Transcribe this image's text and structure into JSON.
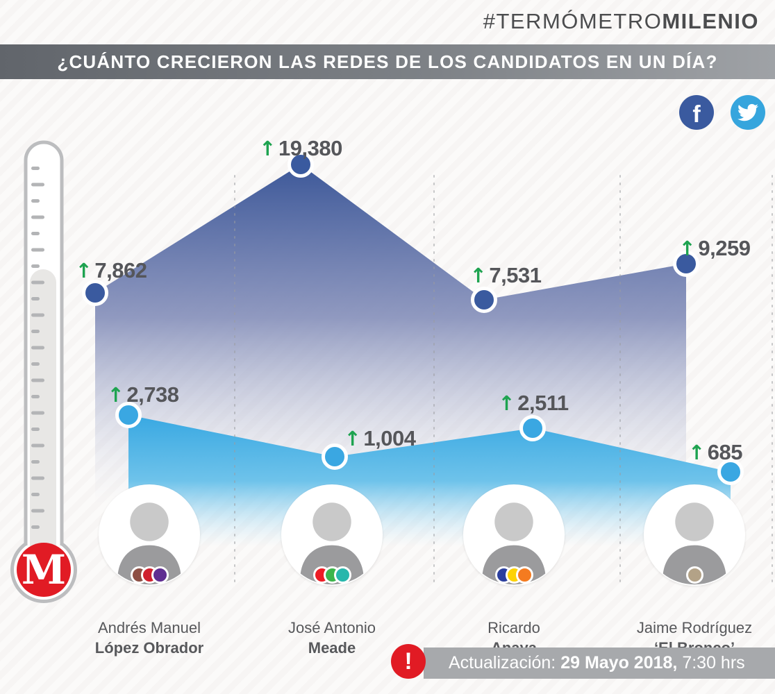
{
  "header": {
    "hashtag_light": "#TERMÓMETRO",
    "hashtag_bold": "MILENIO"
  },
  "title": "¿CUÁNTO CRECIERON LAS REDES DE LOS CANDIDATOS EN UN DÍA?",
  "social": {
    "facebook_glyph": "f",
    "facebook_color": "#3b5998",
    "twitter_color": "#36a5dd"
  },
  "chart_data": {
    "type": "area",
    "title": "¿CUÁNTO CRECIERON LAS REDES DE LOS CANDIDATOS EN UN DÍA?",
    "categories": [
      "Andrés Manuel López Obrador",
      "José Antonio Meade",
      "Ricardo Anaya",
      "Jaime Rodríguez ‘El Bronco’"
    ],
    "series": [
      {
        "name": "Facebook",
        "color": "#3a5a9f",
        "values": [
          7862,
          19380,
          7531,
          9259
        ],
        "labels": [
          "7,862",
          "19,380",
          "7,531",
          "9,259"
        ]
      },
      {
        "name": "Twitter",
        "color": "#3aa7e2",
        "values": [
          2738,
          1004,
          2511,
          685
        ],
        "labels": [
          "2,738",
          "1,004",
          "2,511",
          "685"
        ]
      }
    ],
    "arrow": "↑",
    "arrow_color": "#1ea350",
    "legend_position": "top-right",
    "grid": "dashed vertical separators"
  },
  "candidates": [
    {
      "first": "Andrés Manuel",
      "last": "López Obrador",
      "party_colors": [
        "#8d4f44",
        "#d0202e",
        "#5f2d91"
      ]
    },
    {
      "first": "José Antonio",
      "last": "Meade",
      "party_colors": [
        "#ed1c24",
        "#3cb54b",
        "#28b7ac"
      ]
    },
    {
      "first": "Ricardo",
      "last": "Anaya",
      "party_colors": [
        "#2b3f9e",
        "#fdd204",
        "#f47b20"
      ]
    },
    {
      "first": "Jaime Rodríguez",
      "last": "‘El Bronco’",
      "party_colors": [
        "#b3a287"
      ]
    }
  ],
  "footer": {
    "alert_glyph": "!",
    "label": "Actualización:",
    "date_bold": "29 Mayo 2018,",
    "time": "7:30 hrs"
  },
  "logo": {
    "letter": "M",
    "color": "#e11b24"
  }
}
